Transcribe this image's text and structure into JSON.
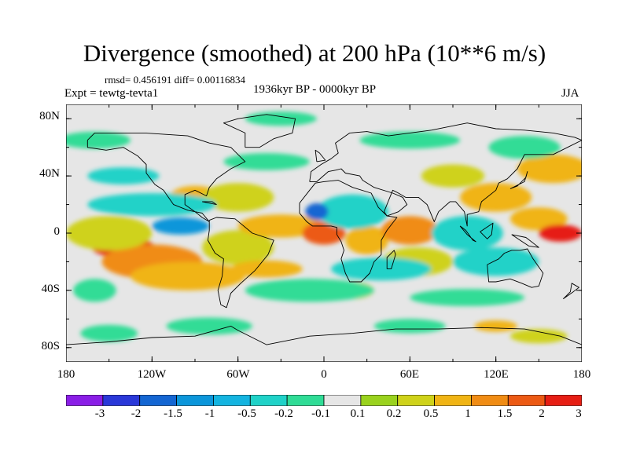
{
  "title": "Divergence (smoothed) at 200 hPa (10**6 m/s)",
  "stats": "rmsd= 0.456191 diff= 0.00116834",
  "experiment": "Expt = tewtg-tevta1",
  "period": "1936kyr BP - 0000kyr BP",
  "season": "JJA",
  "axes": {
    "x_ticks": [
      "180",
      "120W",
      "60W",
      "0",
      "60E",
      "120E",
      "180"
    ],
    "y_ticks": [
      "80N",
      "40N",
      "0",
      "40S",
      "80S"
    ],
    "x_range_deg": [
      -180,
      180
    ],
    "y_range_deg": [
      -90,
      90
    ]
  },
  "colorbar": {
    "labels": [
      "-3",
      "-2",
      "-1.5",
      "-1",
      "-0.5",
      "-0.2",
      "-0.1",
      "0.1",
      "0.2",
      "0.5",
      "1",
      "1.5",
      "2",
      "3"
    ],
    "colors": [
      "#8a1ee6",
      "#2a38d8",
      "#1466d2",
      "#0c96da",
      "#14b4e0",
      "#20d2c8",
      "#30dc96",
      "#e6e6e6",
      "#9ad21e",
      "#cfd21a",
      "#f0b414",
      "#f08c14",
      "#ec5a14",
      "#e61e14"
    ]
  },
  "background_color": "#e6e6e6",
  "anomaly_regions": [
    {
      "lon": -140,
      "lat": -10,
      "rlon": 22,
      "rlat": 7,
      "cls": 13
    },
    {
      "lon": -120,
      "lat": -20,
      "rlon": 35,
      "rlat": 12,
      "cls": 11
    },
    {
      "lon": -95,
      "lat": -30,
      "rlon": 40,
      "rlat": 10,
      "cls": 10
    },
    {
      "lon": -150,
      "lat": 0,
      "rlon": 30,
      "rlat": 12,
      "cls": 9
    },
    {
      "lon": -60,
      "lat": -10,
      "rlon": 25,
      "rlat": 12,
      "cls": 9
    },
    {
      "lon": -30,
      "lat": 5,
      "rlon": 30,
      "rlat": 8,
      "cls": 10
    },
    {
      "lon": 0,
      "lat": 0,
      "rlon": 15,
      "rlat": 8,
      "cls": 12
    },
    {
      "lon": 30,
      "lat": -5,
      "rlon": 15,
      "rlat": 10,
      "cls": 10
    },
    {
      "lon": 60,
      "lat": 2,
      "rlon": 20,
      "rlat": 10,
      "cls": 11
    },
    {
      "lon": 65,
      "lat": -20,
      "rlon": 25,
      "rlat": 10,
      "cls": 9
    },
    {
      "lon": 120,
      "lat": 25,
      "rlon": 25,
      "rlat": 10,
      "cls": 10
    },
    {
      "lon": 150,
      "lat": 10,
      "rlon": 20,
      "rlat": 8,
      "cls": 10
    },
    {
      "lon": 165,
      "lat": 0,
      "rlon": 15,
      "rlat": 6,
      "cls": 13
    },
    {
      "lon": -90,
      "lat": 25,
      "rlon": 18,
      "rlat": 8,
      "cls": 10
    },
    {
      "lon": -60,
      "lat": 25,
      "rlon": 25,
      "rlat": 10,
      "cls": 9
    },
    {
      "lon": 160,
      "lat": 45,
      "rlon": 25,
      "rlat": 10,
      "cls": 10
    },
    {
      "lon": 90,
      "lat": 40,
      "rlon": 22,
      "rlat": 8,
      "cls": 9
    },
    {
      "lon": -40,
      "lat": -25,
      "rlon": 25,
      "rlat": 6,
      "cls": 10
    },
    {
      "lon": 20,
      "lat": -40,
      "rlon": 15,
      "rlat": 6,
      "cls": 9
    },
    {
      "lon": 20,
      "lat": 15,
      "rlon": 25,
      "rlat": 12,
      "cls": 5
    },
    {
      "lon": -5,
      "lat": 15,
      "rlon": 8,
      "rlat": 6,
      "cls": 2
    },
    {
      "lon": 100,
      "lat": 0,
      "rlon": 25,
      "rlat": 12,
      "cls": 5
    },
    {
      "lon": 40,
      "lat": -25,
      "rlon": 35,
      "rlat": 8,
      "cls": 5
    },
    {
      "lon": 120,
      "lat": -20,
      "rlon": 30,
      "rlat": 10,
      "cls": 5
    },
    {
      "lon": -120,
      "lat": 20,
      "rlon": 45,
      "rlat": 8,
      "cls": 5
    },
    {
      "lon": -100,
      "lat": 5,
      "rlon": 20,
      "rlat": 6,
      "cls": 3
    },
    {
      "lon": -140,
      "lat": 40,
      "rlon": 25,
      "rlat": 6,
      "cls": 5
    },
    {
      "lon": -160,
      "lat": 65,
      "rlon": 25,
      "rlat": 6,
      "cls": 6
    },
    {
      "lon": -40,
      "lat": 50,
      "rlon": 30,
      "rlat": 6,
      "cls": 6
    },
    {
      "lon": 60,
      "lat": 65,
      "rlon": 35,
      "rlat": 6,
      "cls": 6
    },
    {
      "lon": -30,
      "lat": 80,
      "rlon": 25,
      "rlat": 5,
      "cls": 6
    },
    {
      "lon": 140,
      "lat": 60,
      "rlon": 25,
      "rlat": 8,
      "cls": 6
    },
    {
      "lon": -10,
      "lat": -40,
      "rlon": 45,
      "rlat": 8,
      "cls": 6
    },
    {
      "lon": 100,
      "lat": -45,
      "rlon": 40,
      "rlat": 6,
      "cls": 6
    },
    {
      "lon": -160,
      "lat": -40,
      "rlon": 15,
      "rlat": 8,
      "cls": 6
    },
    {
      "lon": -80,
      "lat": -65,
      "rlon": 30,
      "rlat": 6,
      "cls": 6
    },
    {
      "lon": 60,
      "lat": -65,
      "rlon": 25,
      "rlat": 5,
      "cls": 6
    },
    {
      "lon": 150,
      "lat": -72,
      "rlon": 20,
      "rlat": 5,
      "cls": 9
    },
    {
      "lon": -150,
      "lat": -70,
      "rlon": 20,
      "rlat": 6,
      "cls": 6
    },
    {
      "lon": 120,
      "lat": -65,
      "rlon": 15,
      "rlat": 4,
      "cls": 10
    }
  ],
  "coastlines": [
    {
      "name": "north-america",
      "pts": [
        [
          -165,
          65
        ],
        [
          -160,
          70
        ],
        [
          -140,
          70
        ],
        [
          -125,
          70
        ],
        [
          -95,
          68
        ],
        [
          -80,
          63
        ],
        [
          -65,
          60
        ],
        [
          -55,
          50
        ],
        [
          -65,
          45
        ],
        [
          -75,
          38
        ],
        [
          -80,
          32
        ],
        [
          -82,
          26
        ],
        [
          -90,
          30
        ],
        [
          -97,
          27
        ],
        [
          -97,
          20
        ],
        [
          -90,
          15
        ],
        [
          -85,
          11
        ],
        [
          -80,
          8
        ],
        [
          -85,
          14
        ],
        [
          -95,
          16
        ],
        [
          -105,
          20
        ],
        [
          -112,
          30
        ],
        [
          -118,
          34
        ],
        [
          -124,
          42
        ],
        [
          -124,
          48
        ],
        [
          -130,
          54
        ],
        [
          -140,
          60
        ],
        [
          -152,
          58
        ],
        [
          -165,
          60
        ],
        [
          -165,
          65
        ]
      ]
    },
    {
      "name": "south-america",
      "pts": [
        [
          -80,
          9
        ],
        [
          -75,
          11
        ],
        [
          -62,
          10
        ],
        [
          -50,
          0
        ],
        [
          -35,
          -5
        ],
        [
          -39,
          -15
        ],
        [
          -48,
          -26
        ],
        [
          -58,
          -35
        ],
        [
          -65,
          -42
        ],
        [
          -68,
          -52
        ],
        [
          -72,
          -50
        ],
        [
          -74,
          -40
        ],
        [
          -71,
          -30
        ],
        [
          -70,
          -18
        ],
        [
          -76,
          -14
        ],
        [
          -81,
          -5
        ],
        [
          -80,
          2
        ],
        [
          -80,
          9
        ]
      ]
    },
    {
      "name": "greenland",
      "pts": [
        [
          -55,
          60
        ],
        [
          -45,
          60
        ],
        [
          -35,
          66
        ],
        [
          -22,
          70
        ],
        [
          -20,
          80
        ],
        [
          -40,
          83
        ],
        [
          -60,
          80
        ],
        [
          -70,
          77
        ],
        [
          -55,
          70
        ],
        [
          -55,
          60
        ]
      ]
    },
    {
      "name": "eurasia",
      "pts": [
        [
          -10,
          36
        ],
        [
          -9,
          43
        ],
        [
          -2,
          48
        ],
        [
          5,
          52
        ],
        [
          10,
          56
        ],
        [
          8,
          63
        ],
        [
          18,
          70
        ],
        [
          30,
          71
        ],
        [
          45,
          68
        ],
        [
          60,
          70
        ],
        [
          75,
          72
        ],
        [
          100,
          77
        ],
        [
          120,
          73
        ],
        [
          140,
          72
        ],
        [
          160,
          70
        ],
        [
          175,
          67
        ],
        [
          180,
          65
        ],
        [
          170,
          60
        ],
        [
          160,
          55
        ],
        [
          140,
          55
        ],
        [
          135,
          45
        ],
        [
          128,
          38
        ],
        [
          122,
          35
        ],
        [
          120,
          30
        ],
        [
          110,
          22
        ],
        [
          108,
          15
        ],
        [
          100,
          13
        ],
        [
          100,
          5
        ],
        [
          98,
          15
        ],
        [
          92,
          22
        ],
        [
          88,
          22
        ],
        [
          80,
          15
        ],
        [
          77,
          8
        ],
        [
          72,
          20
        ],
        [
          66,
          25
        ],
        [
          57,
          25
        ],
        [
          52,
          28
        ],
        [
          48,
          30
        ],
        [
          42,
          15
        ],
        [
          44,
          12
        ],
        [
          52,
          15
        ],
        [
          58,
          20
        ],
        [
          55,
          25
        ],
        [
          48,
          28
        ],
        [
          35,
          32
        ],
        [
          27,
          37
        ],
        [
          25,
          40
        ],
        [
          15,
          42
        ],
        [
          12,
          45
        ],
        [
          8,
          44
        ],
        [
          3,
          43
        ],
        [
          -5,
          36
        ],
        [
          -10,
          36
        ]
      ]
    },
    {
      "name": "africa",
      "pts": [
        [
          -17,
          21
        ],
        [
          -17,
          14
        ],
        [
          -12,
          8
        ],
        [
          -8,
          5
        ],
        [
          5,
          5
        ],
        [
          9,
          4
        ],
        [
          9,
          -1
        ],
        [
          12,
          -6
        ],
        [
          14,
          -12
        ],
        [
          12,
          -18
        ],
        [
          15,
          -28
        ],
        [
          18,
          -34
        ],
        [
          26,
          -34
        ],
        [
          32,
          -28
        ],
        [
          35,
          -20
        ],
        [
          40,
          -15
        ],
        [
          40,
          -5
        ],
        [
          44,
          2
        ],
        [
          51,
          11
        ],
        [
          44,
          12
        ],
        [
          38,
          18
        ],
        [
          33,
          28
        ],
        [
          20,
          32
        ],
        [
          10,
          37
        ],
        [
          0,
          36
        ],
        [
          -6,
          35
        ],
        [
          -10,
          30
        ],
        [
          -17,
          21
        ]
      ]
    },
    {
      "name": "australia",
      "pts": [
        [
          114,
          -22
        ],
        [
          115,
          -34
        ],
        [
          120,
          -34
        ],
        [
          130,
          -32
        ],
        [
          138,
          -35
        ],
        [
          145,
          -38
        ],
        [
          150,
          -37
        ],
        [
          153,
          -28
        ],
        [
          146,
          -18
        ],
        [
          142,
          -11
        ],
        [
          137,
          -12
        ],
        [
          131,
          -12
        ],
        [
          126,
          -14
        ],
        [
          122,
          -18
        ],
        [
          114,
          -22
        ]
      ]
    },
    {
      "name": "antarctica",
      "pts": [
        [
          -180,
          -78
        ],
        [
          -150,
          -76
        ],
        [
          -120,
          -73
        ],
        [
          -90,
          -72
        ],
        [
          -65,
          -65
        ],
        [
          -60,
          -68
        ],
        [
          -40,
          -78
        ],
        [
          -10,
          -72
        ],
        [
          20,
          -70
        ],
        [
          50,
          -67
        ],
        [
          80,
          -67
        ],
        [
          110,
          -66
        ],
        [
          140,
          -67
        ],
        [
          165,
          -72
        ],
        [
          180,
          -78
        ]
      ]
    },
    {
      "name": "madagascar",
      "pts": [
        [
          44,
          -25
        ],
        [
          47,
          -25
        ],
        [
          50,
          -15
        ],
        [
          49,
          -12
        ],
        [
          44,
          -17
        ],
        [
          44,
          -25
        ]
      ]
    },
    {
      "name": "new-guinea",
      "pts": [
        [
          131,
          -1
        ],
        [
          141,
          -3
        ],
        [
          150,
          -10
        ],
        [
          143,
          -9
        ],
        [
          137,
          -5
        ],
        [
          131,
          -1
        ]
      ]
    },
    {
      "name": "borneo",
      "pts": [
        [
          109,
          1
        ],
        [
          114,
          -4
        ],
        [
          117,
          -1
        ],
        [
          118,
          7
        ],
        [
          115,
          5
        ],
        [
          109,
          1
        ]
      ]
    },
    {
      "name": "sumatra",
      "pts": [
        [
          95,
          5
        ],
        [
          100,
          -1
        ],
        [
          106,
          -6
        ],
        [
          104,
          -5
        ],
        [
          99,
          2
        ],
        [
          95,
          5
        ]
      ]
    },
    {
      "name": "japan",
      "pts": [
        [
          130,
          31
        ],
        [
          136,
          34
        ],
        [
          140,
          36
        ],
        [
          142,
          43
        ],
        [
          141,
          39
        ],
        [
          135,
          33
        ],
        [
          130,
          31
        ]
      ]
    },
    {
      "name": "uk",
      "pts": [
        [
          -5,
          50
        ],
        [
          1,
          51
        ],
        [
          -3,
          56
        ],
        [
          -6,
          58
        ],
        [
          -5,
          50
        ]
      ]
    },
    {
      "name": "new-zealand",
      "pts": [
        [
          167,
          -46
        ],
        [
          174,
          -41
        ],
        [
          178,
          -38
        ],
        [
          173,
          -35
        ],
        [
          172,
          -41
        ],
        [
          167,
          -46
        ]
      ]
    },
    {
      "name": "cuba",
      "pts": [
        [
          -85,
          22
        ],
        [
          -75,
          20
        ],
        [
          -78,
          22
        ],
        [
          -85,
          22
        ]
      ]
    }
  ]
}
